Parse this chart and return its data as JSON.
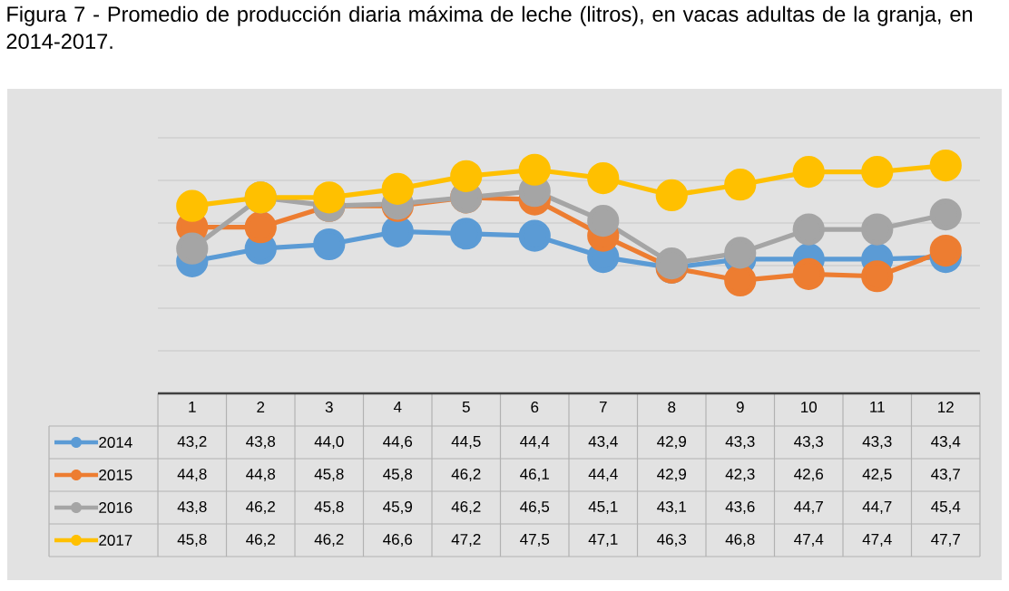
{
  "chart_data": {
    "type": "line",
    "title": "Figura 7 - Promedio de producción diaria máxima de leche (litros), en vacas adultas de la granja, en 2014-2017.",
    "categories": [
      "1",
      "2",
      "3",
      "4",
      "5",
      "6",
      "7",
      "8",
      "9",
      "10",
      "11",
      "12"
    ],
    "series": [
      {
        "name": "2014",
        "color": "#5b9bd5",
        "values": [
          43.2,
          43.8,
          44.0,
          44.6,
          44.5,
          44.4,
          43.4,
          42.9,
          43.3,
          43.3,
          43.3,
          43.4
        ],
        "value_labels": [
          "43,2",
          "43,8",
          "44,0",
          "44,6",
          "44,5",
          "44,4",
          "43,4",
          "42,9",
          "43,3",
          "43,3",
          "43,3",
          "43,4"
        ]
      },
      {
        "name": "2015",
        "color": "#ed7d31",
        "values": [
          44.8,
          44.8,
          45.8,
          45.8,
          46.2,
          46.1,
          44.4,
          42.9,
          42.3,
          42.6,
          42.5,
          43.7
        ],
        "value_labels": [
          "44,8",
          "44,8",
          "45,8",
          "45,8",
          "46,2",
          "46,1",
          "44,4",
          "42,9",
          "42,3",
          "42,6",
          "42,5",
          "43,7"
        ]
      },
      {
        "name": "2016",
        "color": "#a5a5a5",
        "values": [
          43.8,
          46.2,
          45.8,
          45.9,
          46.2,
          46.5,
          45.1,
          43.1,
          43.6,
          44.7,
          44.7,
          45.4
        ],
        "value_labels": [
          "43,8",
          "46,2",
          "45,8",
          "45,9",
          "46,2",
          "46,5",
          "45,1",
          "43,1",
          "43,6",
          "44,7",
          "44,7",
          "45,4"
        ]
      },
      {
        "name": "2017",
        "color": "#ffc000",
        "values": [
          45.8,
          46.2,
          46.2,
          46.6,
          47.2,
          47.5,
          47.1,
          46.3,
          46.8,
          47.4,
          47.4,
          47.7
        ],
        "value_labels": [
          "45,8",
          "46,2",
          "46,2",
          "46,6",
          "47,2",
          "47,5",
          "47,1",
          "46,3",
          "46,8",
          "47,4",
          "47,4",
          "47,7"
        ]
      }
    ],
    "ylim": [
      37,
      49
    ],
    "yticks": [
      {
        "value": 39,
        "label": null
      },
      {
        "value": 41,
        "label": null
      },
      {
        "value": 43,
        "label": null
      },
      {
        "value": 45,
        "label": null
      },
      {
        "value": 47,
        "label": null
      },
      {
        "value": 49,
        "label": null
      }
    ],
    "tick_labels": "x",
    "grid": "y",
    "legend": "bottom",
    "marker": "circle",
    "line_style": "solid"
  }
}
